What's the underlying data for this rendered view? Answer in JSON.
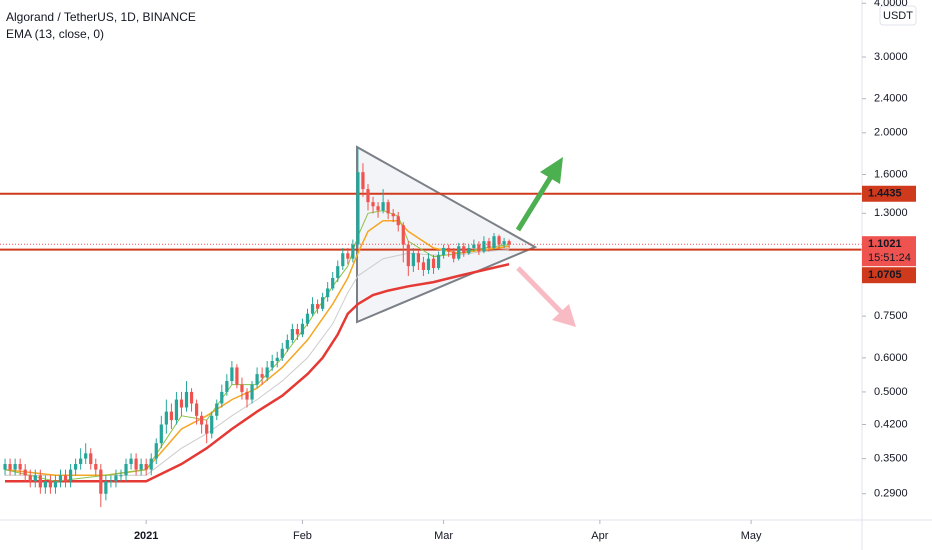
{
  "chart_data": {
    "type": "candlestick",
    "title": "Algorand / TetherUS, 1D, BINANCE",
    "indicator": "EMA (13, close, 0)",
    "axis_unit": "USDT",
    "log_scale": true,
    "grid": false,
    "up_color": "#26a69a",
    "down_color": "#ef5350",
    "xlim": [
      -1,
      170
    ],
    "xticks": [
      {
        "value": 28,
        "label": "2021"
      },
      {
        "value": 59,
        "label": "Feb"
      },
      {
        "value": 87,
        "label": "Mar"
      },
      {
        "value": 118,
        "label": "Apr"
      },
      {
        "value": 148,
        "label": "May"
      }
    ],
    "ylim": [
      0.252,
      4.07
    ],
    "yticks": [
      {
        "value": 4,
        "label": "4.0000"
      },
      {
        "value": 3,
        "label": "3.0000"
      },
      {
        "value": 2.4,
        "label": "2.4000"
      },
      {
        "value": 2,
        "label": "2.0000"
      },
      {
        "value": 1.6,
        "label": "1.6000"
      },
      {
        "value": 1.3,
        "label": "1.3000"
      },
      {
        "value": 0.75,
        "label": "0.7500"
      },
      {
        "value": 0.6,
        "label": "0.6000"
      },
      {
        "value": 0.5,
        "label": "0.5000"
      },
      {
        "value": 0.42,
        "label": "0.4200"
      },
      {
        "value": 0.35,
        "label": "0.3500"
      },
      {
        "value": 0.29,
        "label": "0.2900"
      }
    ],
    "open": [
      0.33,
      0.34,
      0.33,
      0.34,
      0.33,
      0.32,
      0.31,
      0.32,
      0.3,
      0.31,
      0.3,
      0.31,
      0.32,
      0.31,
      0.33,
      0.34,
      0.35,
      0.36,
      0.34,
      0.33,
      0.29,
      0.31,
      0.31,
      0.32,
      0.32,
      0.34,
      0.35,
      0.33,
      0.34,
      0.33,
      0.35,
      0.38,
      0.42,
      0.45,
      0.43,
      0.48,
      0.46,
      0.5,
      0.47,
      0.44,
      0.42,
      0.4,
      0.44,
      0.47,
      0.5,
      0.53,
      0.57,
      0.52,
      0.5,
      0.48,
      0.52,
      0.55,
      0.54,
      0.57,
      0.59,
      0.6,
      0.63,
      0.66,
      0.7,
      0.68,
      0.72,
      0.76,
      0.8,
      0.78,
      0.83,
      0.87,
      0.92,
      0.98,
      1.05,
      1.02,
      1.1,
      1.62,
      1.48,
      1.38,
      1.35,
      1.32,
      1.38,
      1.3,
      1.28,
      1.22,
      1.1,
      0.98,
      1.05,
      1.0,
      0.96,
      1.02,
      0.97,
      1.04,
      1.08,
      1.06,
      1.02,
      1.09,
      1.05,
      1.08,
      1.1,
      1.06,
      1.12,
      1.08,
      1.15,
      1.1,
      1.12
    ],
    "high": [
      0.35,
      0.35,
      0.35,
      0.35,
      0.34,
      0.33,
      0.33,
      0.33,
      0.32,
      0.32,
      0.32,
      0.33,
      0.33,
      0.34,
      0.35,
      0.37,
      0.38,
      0.37,
      0.35,
      0.34,
      0.32,
      0.32,
      0.33,
      0.33,
      0.35,
      0.36,
      0.36,
      0.35,
      0.35,
      0.36,
      0.39,
      0.44,
      0.48,
      0.47,
      0.5,
      0.5,
      0.53,
      0.51,
      0.48,
      0.45,
      0.43,
      0.45,
      0.48,
      0.52,
      0.55,
      0.59,
      0.58,
      0.54,
      0.51,
      0.53,
      0.57,
      0.57,
      0.59,
      0.61,
      0.62,
      0.65,
      0.68,
      0.72,
      0.72,
      0.74,
      0.78,
      0.83,
      0.82,
      0.85,
      0.9,
      0.95,
      1.01,
      1.08,
      1.08,
      1.13,
      1.85,
      1.7,
      1.52,
      1.42,
      1.38,
      1.48,
      1.4,
      1.33,
      1.31,
      1.24,
      1.12,
      1.08,
      1.07,
      1.03,
      1.05,
      1.04,
      1.06,
      1.1,
      1.1,
      1.08,
      1.11,
      1.11,
      1.1,
      1.13,
      1.12,
      1.15,
      1.14,
      1.17,
      1.16,
      1.14,
      1.13
    ],
    "low": [
      0.32,
      0.32,
      0.32,
      0.32,
      0.31,
      0.3,
      0.3,
      0.29,
      0.29,
      0.29,
      0.29,
      0.3,
      0.3,
      0.3,
      0.32,
      0.33,
      0.34,
      0.33,
      0.32,
      0.27,
      0.28,
      0.3,
      0.3,
      0.31,
      0.31,
      0.33,
      0.32,
      0.32,
      0.32,
      0.32,
      0.34,
      0.37,
      0.4,
      0.41,
      0.42,
      0.44,
      0.45,
      0.45,
      0.42,
      0.4,
      0.38,
      0.39,
      0.43,
      0.46,
      0.49,
      0.52,
      0.51,
      0.48,
      0.46,
      0.47,
      0.51,
      0.52,
      0.53,
      0.56,
      0.57,
      0.59,
      0.62,
      0.65,
      0.66,
      0.67,
      0.71,
      0.75,
      0.76,
      0.77,
      0.81,
      0.86,
      0.9,
      0.96,
      0.99,
      1.0,
      1.08,
      1.42,
      1.32,
      1.3,
      1.27,
      1.3,
      1.26,
      1.24,
      1.18,
      1.0,
      0.93,
      0.95,
      0.96,
      0.93,
      0.94,
      0.94,
      0.96,
      1.02,
      1.03,
      1.0,
      1.01,
      1.03,
      1.04,
      1.06,
      1.04,
      1.05,
      1.06,
      1.07,
      1.07,
      1.08,
      1.08
    ],
    "close": [
      0.34,
      0.33,
      0.34,
      0.33,
      0.32,
      0.31,
      0.32,
      0.3,
      0.31,
      0.3,
      0.31,
      0.32,
      0.31,
      0.33,
      0.34,
      0.35,
      0.36,
      0.34,
      0.33,
      0.29,
      0.31,
      0.31,
      0.32,
      0.32,
      0.34,
      0.35,
      0.33,
      0.34,
      0.33,
      0.35,
      0.38,
      0.42,
      0.45,
      0.43,
      0.48,
      0.46,
      0.5,
      0.47,
      0.44,
      0.42,
      0.4,
      0.44,
      0.47,
      0.5,
      0.53,
      0.57,
      0.52,
      0.5,
      0.48,
      0.52,
      0.55,
      0.54,
      0.57,
      0.59,
      0.6,
      0.63,
      0.66,
      0.7,
      0.68,
      0.72,
      0.76,
      0.8,
      0.78,
      0.83,
      0.87,
      0.92,
      0.98,
      1.05,
      1.02,
      1.1,
      1.62,
      1.48,
      1.38,
      1.35,
      1.32,
      1.38,
      1.3,
      1.28,
      1.22,
      1.1,
      0.98,
      1.05,
      1.0,
      0.96,
      1.02,
      0.97,
      1.04,
      1.08,
      1.06,
      1.02,
      1.09,
      1.05,
      1.08,
      1.1,
      1.06,
      1.12,
      1.08,
      1.15,
      1.1,
      1.12,
      1.1
    ],
    "lines": [
      {
        "color": "#cccccc",
        "width": 1,
        "x": [
          0,
          10,
          20,
          28,
          35,
          40,
          45,
          50,
          55,
          60,
          65,
          68,
          70,
          75,
          80,
          85,
          90,
          95,
          100
        ],
        "values": [
          0.32,
          0.32,
          0.32,
          0.32,
          0.37,
          0.4,
          0.44,
          0.48,
          0.53,
          0.6,
          0.72,
          0.85,
          0.93,
          1.02,
          1.05,
          1.04,
          1.04,
          1.06,
          1.07
        ]
      },
      {
        "color": "#e53935",
        "width": 2.5,
        "x": [
          0,
          10,
          20,
          28,
          35,
          40,
          45,
          50,
          55,
          60,
          63,
          66,
          68,
          70,
          73,
          76,
          80,
          85,
          90,
          95,
          100
        ],
        "values": [
          0.31,
          0.31,
          0.31,
          0.31,
          0.34,
          0.37,
          0.41,
          0.45,
          0.49,
          0.55,
          0.6,
          0.68,
          0.76,
          0.8,
          0.84,
          0.86,
          0.88,
          0.9,
          0.93,
          0.96,
          0.99
        ]
      },
      {
        "color": "#f5a623",
        "width": 1.5,
        "x": [
          0,
          10,
          20,
          28,
          35,
          40,
          45,
          50,
          55,
          60,
          65,
          68,
          70,
          72,
          75,
          78,
          80,
          85,
          90,
          95,
          100
        ],
        "values": [
          0.33,
          0.32,
          0.32,
          0.33,
          0.41,
          0.44,
          0.48,
          0.51,
          0.57,
          0.66,
          0.8,
          0.92,
          1.05,
          1.18,
          1.25,
          1.25,
          1.18,
          1.08,
          1.05,
          1.07,
          1.09
        ]
      },
      {
        "color": "#8bc34a",
        "width": 1,
        "x": [
          0,
          10,
          20,
          28,
          35,
          40,
          45,
          50,
          55,
          60,
          65,
          68,
          70,
          72,
          75,
          78,
          80,
          85,
          90,
          95,
          100
        ],
        "values": [
          0.33,
          0.31,
          0.32,
          0.33,
          0.44,
          0.43,
          0.52,
          0.52,
          0.6,
          0.72,
          0.88,
          0.98,
          1.15,
          1.3,
          1.32,
          1.28,
          1.12,
          1.03,
          1.05,
          1.08,
          1.1
        ]
      }
    ],
    "price_lines": [
      {
        "value": 1.4435,
        "color": "#cf3a1c"
      },
      {
        "value": 1.0705,
        "color": "#cf3a1c"
      }
    ],
    "last_price": 1.1021,
    "last_price_color": "#ef5350",
    "countdown": "15:51:24"
  }
}
